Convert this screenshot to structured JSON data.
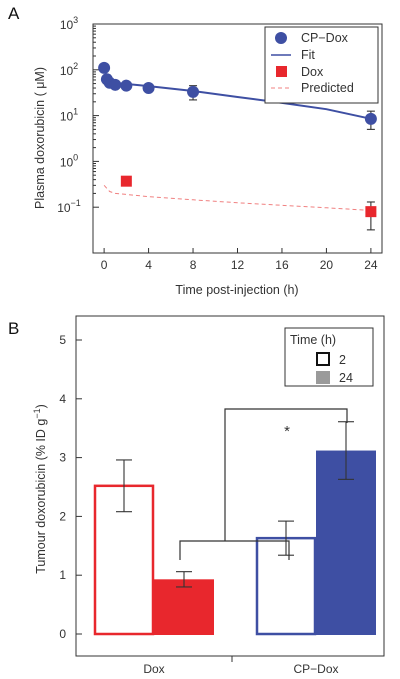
{
  "colors": {
    "blue": "#3e4fa3",
    "red": "#e8272d",
    "gray": "#9a9a9a",
    "predicted": "#f08080",
    "ink": "#333333"
  },
  "chart_data": [
    {
      "panel": "A",
      "type": "scatter",
      "yscale": "log",
      "xlabel": "Time post-injection (h)",
      "ylabel": "Plasma doxorubicin ( μM)",
      "xlim": [
        -1,
        25
      ],
      "ylim": [
        0.01,
        1000
      ],
      "xticks": [
        0,
        4,
        8,
        12,
        16,
        20,
        24
      ],
      "yticks": [
        {
          "value": 0.1,
          "label": "10",
          "exp": "−1"
        },
        {
          "value": 1,
          "label": "10",
          "exp": "0"
        },
        {
          "value": 10,
          "label": "10",
          "exp": "1"
        },
        {
          "value": 100,
          "label": "10",
          "exp": "2"
        },
        {
          "value": 1000,
          "label": "10",
          "exp": "3"
        }
      ],
      "legend_position": "top-right",
      "series": [
        {
          "name": "CP−Dox",
          "kind": "points",
          "marker": "circle",
          "x": [
            0,
            0.25,
            0.5,
            1,
            2,
            4,
            8,
            24
          ],
          "y": [
            110,
            62,
            52,
            47,
            45,
            40,
            33,
            8.5
          ],
          "err_low": [
            93,
            50,
            44,
            41,
            40,
            33,
            22,
            5
          ],
          "err_high": [
            125,
            76,
            58,
            52,
            50,
            47,
            45,
            12.5
          ]
        },
        {
          "name": "Fit",
          "kind": "line",
          "x": [
            0,
            1,
            2,
            4,
            8,
            12,
            16,
            20,
            24
          ],
          "y": [
            57,
            52,
            49,
            44,
            34.5,
            25.5,
            19,
            13.8,
            8.5
          ]
        },
        {
          "name": "Dox",
          "kind": "points",
          "marker": "square",
          "x": [
            2,
            24
          ],
          "y": [
            0.37,
            0.08
          ],
          "err_low": [
            null,
            0.032
          ],
          "err_high": [
            null,
            0.13
          ]
        },
        {
          "name": "Predicted",
          "kind": "dashed-line",
          "x": [
            0,
            0.5,
            1,
            2,
            4,
            8,
            12,
            16,
            20,
            24
          ],
          "y": [
            0.3,
            0.22,
            0.2,
            0.19,
            0.17,
            0.145,
            0.125,
            0.11,
            0.097,
            0.085
          ]
        }
      ]
    },
    {
      "panel": "B",
      "type": "bar",
      "categories": [
        "Dox",
        "CP−Dox"
      ],
      "ylabel": "Tumour doxorubicin (% ID g",
      "ylabel_sup": "−1",
      "ylabel_close": ")",
      "ylim": [
        0,
        5
      ],
      "yticks": [
        0,
        1,
        2,
        3,
        4,
        5
      ],
      "legend_title": "Time (h)",
      "legend_position": "top-right",
      "series": [
        {
          "name": "2",
          "style": "hollow",
          "values": [
            2.52,
            1.63
          ],
          "err": [
            0.44,
            0.29
          ]
        },
        {
          "name": "24",
          "style": "filled",
          "values": [
            0.93,
            3.12
          ],
          "err": [
            0.13,
            0.49
          ]
        }
      ],
      "significance_marker": "*"
    }
  ]
}
